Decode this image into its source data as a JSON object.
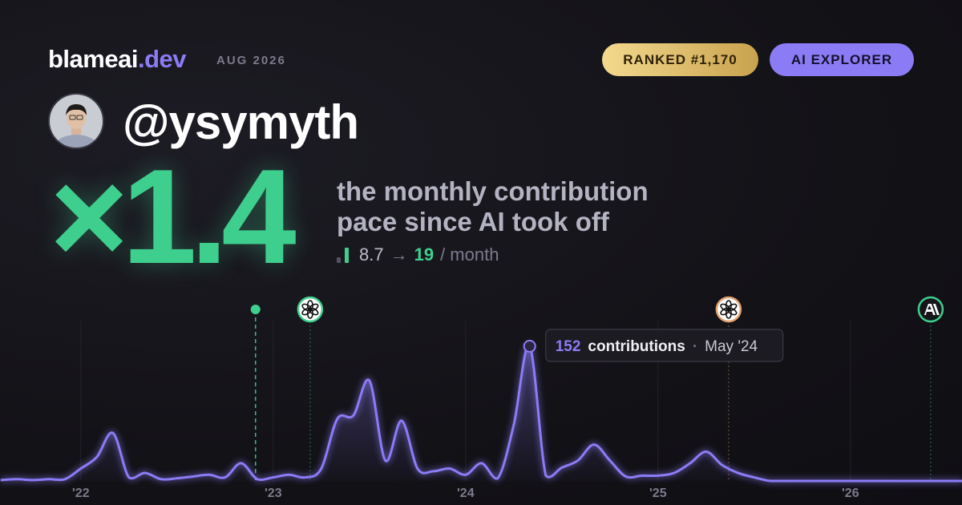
{
  "header": {
    "brand": {
      "name": "blameai",
      "tld": ".dev"
    },
    "date": "AUG 2026",
    "badges": [
      "RANKED #1,170",
      "AI EXPLORER"
    ],
    "handle": "@ysymyth",
    "multiplier": "×1.4",
    "caption": [
      "the monthly contribution",
      "pace since AI took off"
    ],
    "stats": {
      "before": 8.7,
      "arrow": "→",
      "after": 19,
      "unit": "/ month"
    }
  },
  "chart_data": {
    "type": "line",
    "color": "#8b7cf6",
    "x": [
      2021.583,
      2021.667,
      2021.75,
      2021.833,
      2021.917,
      2022,
      2022.083,
      2022.167,
      2022.25,
      2022.333,
      2022.417,
      2022.5,
      2022.583,
      2022.667,
      2022.75,
      2022.833,
      2022.917,
      2023,
      2023.083,
      2023.167,
      2023.25,
      2023.333,
      2023.417,
      2023.5,
      2023.583,
      2023.667,
      2023.75,
      2023.833,
      2023.917,
      2024,
      2024.083,
      2024.167,
      2024.25,
      2024.333,
      2024.417,
      2024.5,
      2024.583,
      2024.667,
      2024.75,
      2024.833,
      2024.917,
      2025,
      2025.083,
      2025.167,
      2025.25,
      2025.333,
      2025.417,
      2025.5,
      2025.583,
      2025.667,
      2025.75,
      2025.833,
      2025.917,
      2026,
      2026.083,
      2026.167,
      2026.25,
      2026.333,
      2026.417,
      2026.5,
      2026.583
    ],
    "values": [
      1,
      2,
      1,
      2,
      2,
      14,
      27,
      54,
      4,
      9,
      2,
      3,
      5,
      7,
      4,
      20,
      2,
      4,
      7,
      4,
      14,
      70,
      74,
      113,
      23,
      68,
      14,
      11,
      14,
      7,
      20,
      3,
      63,
      152,
      6,
      15,
      23,
      41,
      23,
      5,
      6,
      6,
      9,
      20,
      33,
      18,
      9,
      4,
      0,
      0,
      0,
      0,
      0,
      0,
      0,
      0,
      0,
      0,
      0,
      0,
      0
    ],
    "xlim": [
      2021.58,
      2026.58
    ],
    "ylim": [
      0,
      170
    ],
    "xticks": [
      {
        "value": 2022,
        "label": "'22"
      },
      {
        "value": 2023,
        "label": "'23"
      },
      {
        "value": 2024,
        "label": "'24"
      },
      {
        "value": 2025,
        "label": "'25"
      },
      {
        "value": 2026,
        "label": "'26"
      }
    ],
    "grid": true,
    "events": [
      {
        "x": 2022.908,
        "color": "#3ecf8e",
        "icon": "dot"
      },
      {
        "x": 2023.192,
        "color": "#3ecf8e",
        "icon": "openai"
      },
      {
        "x": 2025.367,
        "color": "#e0a070",
        "icon": "openai"
      },
      {
        "x": 2026.417,
        "color": "#3ecf8e",
        "icon": "anthropic"
      }
    ],
    "tooltip": {
      "text": "contributions",
      "separator": "·",
      "date": "May '24"
    }
  }
}
